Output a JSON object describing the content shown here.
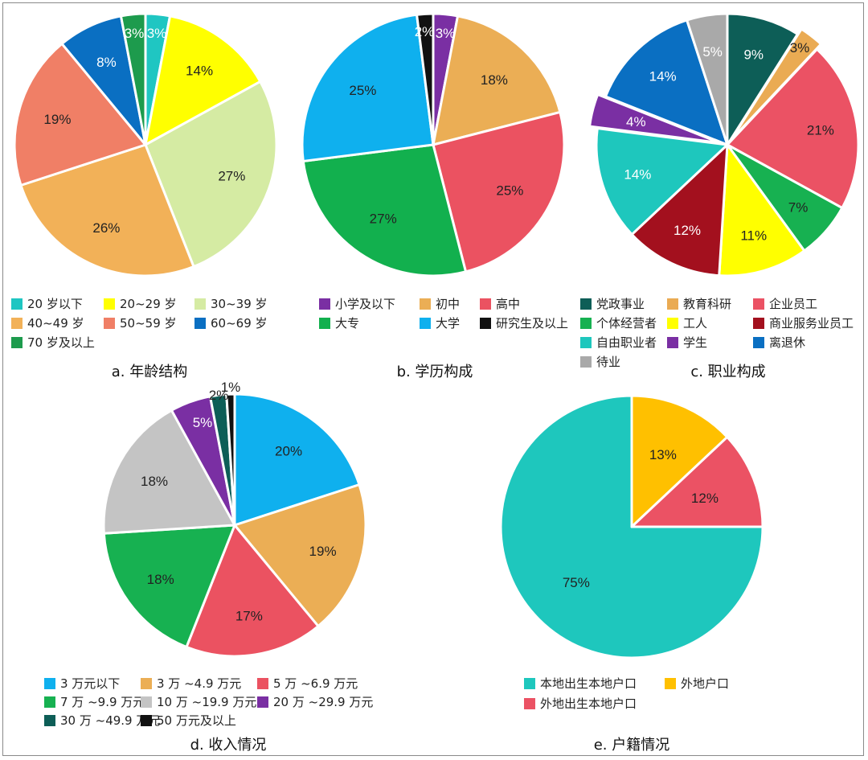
{
  "chart_data": [
    {
      "id": "a",
      "type": "pie",
      "title": "a. 年龄结构",
      "start_deg": 0,
      "categories": [
        "20 岁以下",
        "20~29 岁",
        "30~39 岁",
        "40~49 岁",
        "50~59 岁",
        "60~69 岁",
        "70 岁及以上"
      ],
      "values": [
        3,
        14,
        27,
        26,
        19,
        8,
        3
      ],
      "labels": [
        "3%",
        "14%",
        "27%",
        "26%",
        "19%",
        "8%",
        "3%"
      ],
      "colors": [
        "#1fc6c2",
        "#ffff00",
        "#d5eba3",
        "#f2b158",
        "#f07f66",
        "#0a6fc2",
        "#1d9b4d"
      ],
      "label_colors": [
        "#ffffff",
        "#222222",
        "#222222",
        "#222222",
        "#222222",
        "#ffffff",
        "#ffffff"
      ]
    },
    {
      "id": "b",
      "type": "pie",
      "title": "b. 学历构成",
      "start_deg": 0,
      "categories": [
        "小学及以下",
        "初中",
        "高中",
        "大专",
        "大学",
        "研究生及以上"
      ],
      "values": [
        3,
        18,
        25,
        27,
        25,
        2
      ],
      "labels": [
        "3%",
        "18%",
        "25%",
        "27%",
        "25%",
        "2%"
      ],
      "colors": [
        "#7a2fa3",
        "#ebae55",
        "#eb5261",
        "#12b04e",
        "#0fb0ee",
        "#111111"
      ],
      "label_colors": [
        "#ffffff",
        "#222222",
        "#222222",
        "#222222",
        "#222222",
        "#ffffff"
      ]
    },
    {
      "id": "c",
      "type": "pie",
      "title": "c. 职业构成",
      "start_deg": 0,
      "categories": [
        "党政事业",
        "教育科研",
        "企业员工",
        "个体经营者",
        "工人",
        "商业服务业员工",
        "自由职业者",
        "学生",
        "离退休",
        "待业"
      ],
      "values": [
        9,
        3,
        21,
        7,
        11,
        12,
        14,
        4,
        14,
        5
      ],
      "labels": [
        "9%",
        "3%",
        "21%",
        "7%",
        "11%",
        "12%",
        "14%",
        "4%",
        "14%",
        "5%"
      ],
      "colors": [
        "#0d5e57",
        "#eaab53",
        "#eb5264",
        "#17b151",
        "#ffff00",
        "#a3101e",
        "#1ec7bd",
        "#7a2fa3",
        "#0a6fc2",
        "#a9a9a9"
      ],
      "label_colors": [
        "#ffffff",
        "#222222",
        "#222222",
        "#222222",
        "#222222",
        "#ffffff",
        "#ffffff",
        "#ffffff",
        "#ffffff",
        "#ffffff"
      ]
    },
    {
      "id": "d",
      "type": "pie",
      "title": "d. 收入情况",
      "start_deg": 0,
      "categories": [
        "3 万元以下",
        "3 万 ~4.9 万元",
        "5 万 ~6.9 万元",
        "7 万 ~9.9 万元",
        "10 万 ~19.9 万元",
        "20 万 ~29.9 万元",
        "30 万 ~49.9 万元",
        "50 万元及以上"
      ],
      "values": [
        20,
        19,
        17,
        18,
        18,
        5,
        2,
        1
      ],
      "labels": [
        "20%",
        "19%",
        "17%",
        "18%",
        "18%",
        "5%",
        "2%",
        "1%"
      ],
      "colors": [
        "#0fb0ee",
        "#ebae55",
        "#eb5261",
        "#17b151",
        "#c4c4c4",
        "#7a2fa3",
        "#0d5e57",
        "#111111"
      ],
      "label_colors": [
        "#222222",
        "#222222",
        "#222222",
        "#222222",
        "#222222",
        "#ffffff",
        "#222222",
        "#222222"
      ]
    },
    {
      "id": "e",
      "type": "pie",
      "title": "e. 户籍情况",
      "start_deg": 90,
      "categories": [
        "本地出生本地户口",
        "外地户口",
        "外地出生本地户口"
      ],
      "values": [
        75,
        13,
        12
      ],
      "labels": [
        "75%",
        "13%",
        "12%"
      ],
      "colors": [
        "#1ec7bd",
        "#ffc000",
        "#eb5264"
      ],
      "label_colors": [
        "#222222",
        "#222222",
        "#222222"
      ]
    }
  ]
}
